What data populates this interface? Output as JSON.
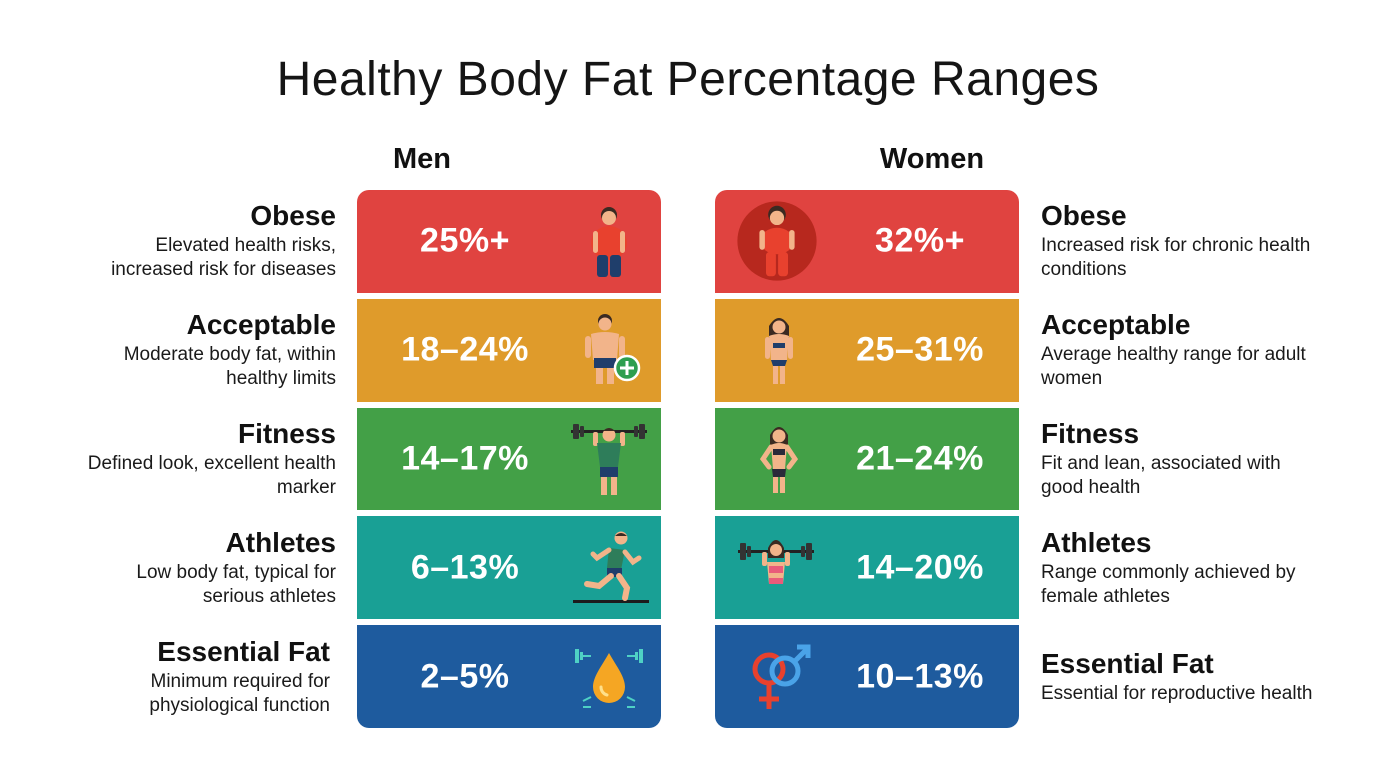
{
  "title": "Healthy Body Fat Percentage Ranges",
  "columns": {
    "men": "Men",
    "women": "Women"
  },
  "colors": {
    "obese": "#e04340",
    "acceptable": "#df9b2b",
    "fitness": "#43a047",
    "athletes": "#19a095",
    "essential": "#1e5b9e"
  },
  "men": [
    {
      "category": "Obese",
      "range": "25%+",
      "description": "Elevated health risks, increased risk for diseases",
      "icon": "overweight-man-icon"
    },
    {
      "category": "Acceptable",
      "range": "18–24%",
      "description": "Moderate body fat, within healthy limits",
      "icon": "man-with-plus-icon"
    },
    {
      "category": "Fitness",
      "range": "14–17%",
      "description": "Defined look, excellent health marker",
      "icon": "man-barbell-icon"
    },
    {
      "category": "Athletes",
      "range": "6–13%",
      "description": "Low body fat, typical for serious athletes",
      "icon": "running-man-icon"
    },
    {
      "category": "Essential Fat",
      "range": "2–5%",
      "description": "Minimum required for physiological function",
      "icon": "fat-drop-dumbbell-icon"
    }
  ],
  "women": [
    {
      "category": "Obese",
      "range": "32%+",
      "description": "Increased risk for chronic health conditions",
      "icon": "overweight-woman-icon"
    },
    {
      "category": "Acceptable",
      "range": "25–31%",
      "description": "Average healthy range for adult women",
      "icon": "woman-icon"
    },
    {
      "category": "Fitness",
      "range": "21–24%",
      "description": "Fit and lean, associated with good health",
      "icon": "fit-woman-icon"
    },
    {
      "category": "Athletes",
      "range": "14–20%",
      "description": "Range commonly achieved by female athletes",
      "icon": "woman-barbell-icon"
    },
    {
      "category": "Essential Fat",
      "range": "10–13%",
      "description": "Essential for reproductive health",
      "icon": "gender-symbols-icon"
    }
  ]
}
